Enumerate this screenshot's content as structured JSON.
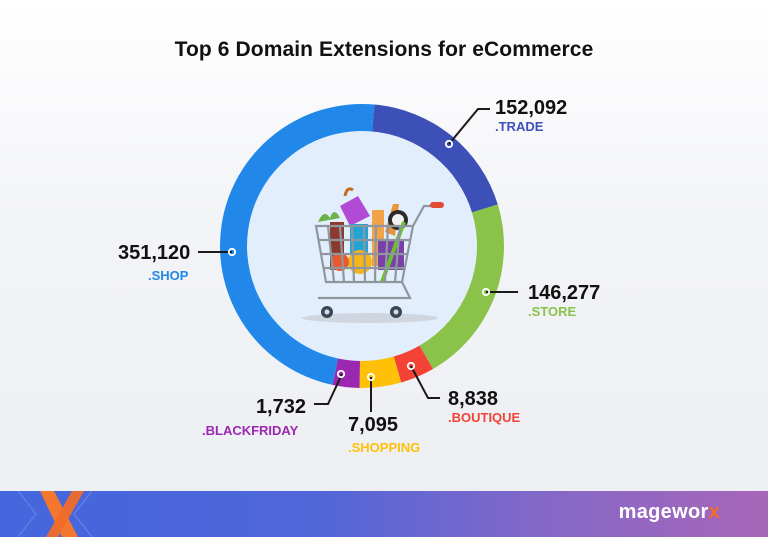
{
  "title": "Top 6 Domain Extensions for eCommerce",
  "labels": {
    "trade": {
      "value": "152,092",
      "name": ".TRADE"
    },
    "store": {
      "value": "146,277",
      "name": ".STORE"
    },
    "boutique": {
      "value": "8,838",
      "name": ".BOUTIQUE"
    },
    "shopping": {
      "value": "7,095",
      "name": ".SHOPPING"
    },
    "blackfriday": {
      "value": "1,732",
      "name": ".BLACKFRIDAY"
    },
    "shop": {
      "value": "351,120",
      "name": ".SHOP"
    }
  },
  "colors": {
    "trade": "#3d50b8",
    "store": "#8bc34a",
    "boutique": "#f44336",
    "shopping": "#ffc107",
    "blackfriday": "#9c27b0",
    "shop": "#2188ea",
    "inner": "#e2eefc"
  },
  "footer": {
    "brand_main": "magewor",
    "brand_accent": "x"
  },
  "chart_data": {
    "type": "pie",
    "title": "Top 6 Domain Extensions for eCommerce",
    "categories": [
      ".TRADE",
      ".STORE",
      ".BOUTIQUE",
      ".SHOPPING",
      ".BLACKFRIDAY",
      ".SHOP"
    ],
    "values": [
      152092,
      146277,
      8838,
      7095,
      1732,
      351120
    ],
    "donut": true,
    "legend": "none (direct labels)"
  }
}
